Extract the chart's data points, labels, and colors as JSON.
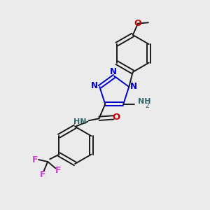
{
  "bg_color": "#ebebeb",
  "bond_color": "#1a1a1a",
  "N_color": "#0000cc",
  "O_color": "#cc0000",
  "F_color": "#cc44cc",
  "NH_color": "#336666",
  "figsize": [
    3.0,
    3.0
  ],
  "dpi": 100,
  "xlim": [
    0,
    10
  ],
  "ylim": [
    0,
    10
  ]
}
